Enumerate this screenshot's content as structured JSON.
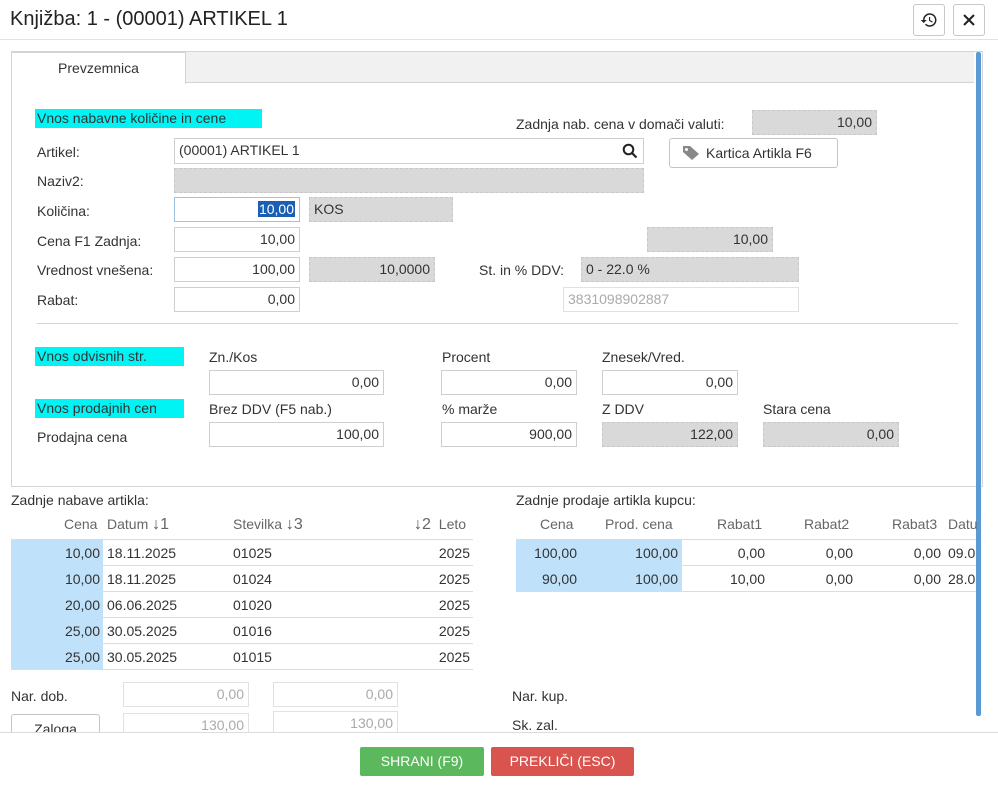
{
  "window": {
    "title": "Knjižba: 1 - (00001) ARTIKEL 1"
  },
  "tabs": [
    {
      "label": "Prevzemnica"
    }
  ],
  "sections": {
    "vnos_nabavne": "Vnos nabavne količine in cene",
    "vnos_odvisnih": "Vnos odvisnih str.",
    "vnos_prodajnih": "Vnos prodajnih cen"
  },
  "form": {
    "zadnja_nab_label": "Zadnja nab. cena v domači valuti:",
    "zadnja_nab_value": "10,00",
    "artikel_label": "Artikel:",
    "artikel_value": "(00001) ARTIKEL 1",
    "kartica_button": "Kartica Artikla F6",
    "naziv2_label": "Naziv2:",
    "naziv2_value": "",
    "kolicina_label": "Količina:",
    "kolicina_value": "10,00",
    "kolicina_unit": "KOS",
    "cena_f1_label": "Cena F1 Zadnja:",
    "cena_f1_value": "10,00",
    "cena_f1_side": "10,00",
    "vrednost_label": "Vrednost vnešena:",
    "vrednost_value": "100,00",
    "vrednost_side": "10,0000",
    "st_ddv_label": "St. in % DDV:",
    "st_ddv_value": "0 - 22.0 %",
    "rabat_label": "Rabat:",
    "rabat_value": "0,00",
    "barcode_value": "3831098902887"
  },
  "odvisni": {
    "col1": "Zn./Kos",
    "col1_value": "0,00",
    "col2": "Procent",
    "col2_value": "0,00",
    "col3": "Znesek/Vred.",
    "col3_value": "0,00"
  },
  "prodajne": {
    "col1": "Brez DDV (F5 nab.)",
    "col2": "% marže",
    "col3": "Z DDV",
    "col4": "Stara cena",
    "row_label": "Prodajna cena",
    "brez_ddv": "100,00",
    "marza": "900,00",
    "z_ddv": "122,00",
    "stara": "0,00"
  },
  "nabave": {
    "title": "Zadnje nabave artikla:",
    "headers": {
      "cena": "Cena",
      "datum": "Datum",
      "datum_sort": "1",
      "stevilka": "Stevilka",
      "stevilka_sort": "3",
      "leto_sort": "2",
      "leto": "Leto"
    },
    "rows": [
      {
        "cena": "10,00",
        "datum": "18.11.2025",
        "stevilka": "01025",
        "leto": "2025"
      },
      {
        "cena": "10,00",
        "datum": "18.11.2025",
        "stevilka": "01024",
        "leto": "2025"
      },
      {
        "cena": "20,00",
        "datum": "06.06.2025",
        "stevilka": "01020",
        "leto": "2025"
      },
      {
        "cena": "25,00",
        "datum": "30.05.2025",
        "stevilka": "01016",
        "leto": "2025"
      },
      {
        "cena": "25,00",
        "datum": "30.05.2025",
        "stevilka": "01015",
        "leto": "2025"
      }
    ]
  },
  "prodaje": {
    "title": "Zadnje prodaje artikla kupcu:",
    "headers": {
      "cena": "Cena",
      "prod_cena": "Prod. cena",
      "rabat1": "Rabat1",
      "rabat2": "Rabat2",
      "rabat3": "Rabat3",
      "datum": "Datu"
    },
    "rows": [
      {
        "cena": "100,00",
        "prod_cena": "100,00",
        "rabat1": "0,00",
        "rabat2": "0,00",
        "rabat3": "0,00",
        "datum": "09.0"
      },
      {
        "cena": "90,00",
        "prod_cena": "100,00",
        "rabat1": "10,00",
        "rabat2": "0,00",
        "rabat3": "0,00",
        "datum": "28.0"
      }
    ]
  },
  "bottom": {
    "nar_dob_label": "Nar. dob.",
    "nar_dob_v1": "0,00",
    "nar_dob_v2": "0,00",
    "zaloga_button": "Zaloga",
    "zaloga_v1": "130,00",
    "zaloga_v2": "130,00",
    "nar_kup_label": "Nar. kup.",
    "sk_zal_label": "Sk. zal."
  },
  "footer": {
    "save": "SHRANI (F9)",
    "cancel": "PREKLIČI (ESC)"
  },
  "colors": {
    "save": "#5cb85c",
    "cancel": "#d9534f",
    "highlight": "#00f4f4",
    "row_blue": "#bfe1f9"
  }
}
